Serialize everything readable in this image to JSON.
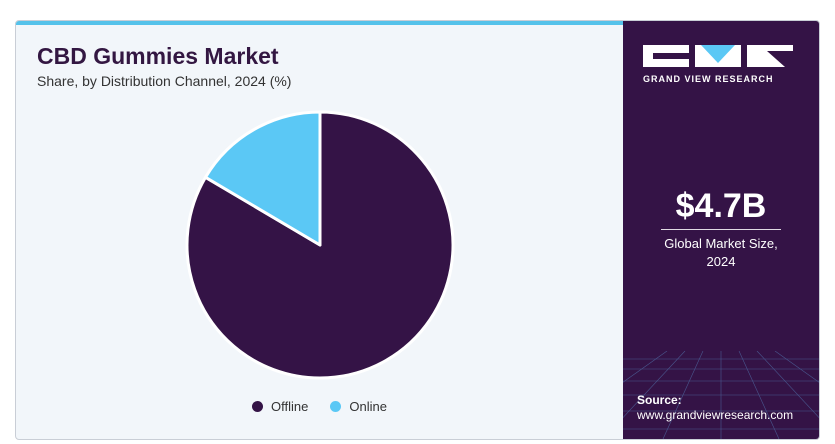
{
  "header": {
    "title": "CBD Gummies Market",
    "subtitle": "Share, by Distribution Channel, 2024 (%)"
  },
  "chart_data": {
    "type": "pie",
    "slices": [
      {
        "label": "Offline",
        "value": 83.5,
        "color": "#341346"
      },
      {
        "label": "Online",
        "value": 16.5,
        "color": "#5bc8f5"
      }
    ],
    "legend_position": "bottom"
  },
  "sidebar": {
    "brand": "GRAND VIEW RESEARCH",
    "market_size_value": "$4.7B",
    "market_size_label_line1": "Global Market Size,",
    "market_size_label_line2": "2024",
    "source_label": "Source:",
    "source_url": "www.grandviewresearch.com",
    "background_color": "#341346",
    "accent_color": "#5bc8f5"
  }
}
